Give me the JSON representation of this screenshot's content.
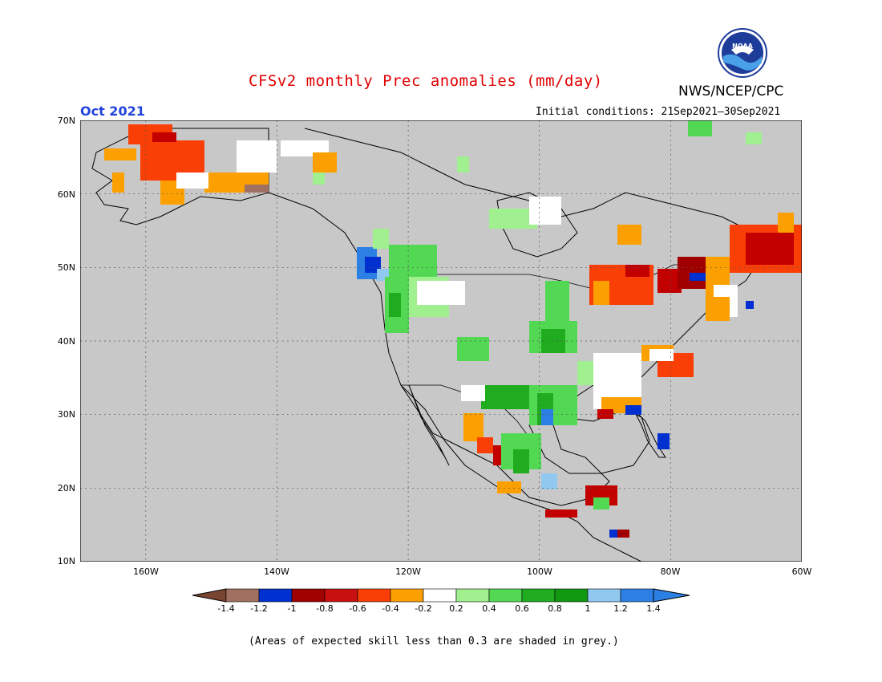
{
  "title": "CFSv2 monthly Prec anomalies (mm/day)",
  "agency": "NWS/NCEP/CPC",
  "logo_text": "NOAA",
  "month_label": "Oct 2021",
  "initial_conditions": "Initial conditions: 21Sep2021–30Sep2021",
  "footnote": "(Areas of expected skill less than 0.3 are shaded in grey.)",
  "map": {
    "lon_range": [
      -170,
      -60
    ],
    "lat_range": [
      10,
      70
    ],
    "lat_labels": [
      "70N",
      "60N",
      "50N",
      "40N",
      "30N",
      "20N",
      "10N"
    ],
    "lon_labels": [
      "160W",
      "140W",
      "120W",
      "100W",
      "80W",
      "60W"
    ],
    "background_color": "#c8c8c8",
    "regions": [
      {
        "name": "Alaska",
        "anomaly": "-0.6 to -0.4",
        "color": "#f93e06"
      },
      {
        "name": "Pacific Northwest coast",
        "anomaly": "1.2 to 1.4",
        "color": "#2c7fe3"
      },
      {
        "name": "Northern Rockies",
        "anomaly": "0.4 to 0.6",
        "color": "#53d853"
      },
      {
        "name": "Southern Plains",
        "anomaly": "0.6 to 0.8",
        "color": "#1fad1f"
      },
      {
        "name": "Eastern Canada / Maine",
        "anomaly": "-1 to -0.8",
        "color": "#c20000"
      },
      {
        "name": "Great Lakes",
        "anomaly": "-0.6 to -0.4",
        "color": "#f93e06"
      },
      {
        "name": "Carolinas",
        "anomaly": "-0.6 to -0.4",
        "color": "#f93e06"
      },
      {
        "name": "Southeast Gulf coast",
        "anomaly": "-0.4 to -0.2",
        "color": "#fba000"
      },
      {
        "name": "Central America",
        "anomaly": "-1 to -0.8",
        "color": "#c20000"
      }
    ]
  },
  "colorbar": {
    "labels": [
      "-1.4",
      "-1.2",
      "-1",
      "-0.8",
      "-0.6",
      "-0.4",
      "-0.2",
      "0.2",
      "0.4",
      "0.6",
      "0.8",
      "1",
      "1.2",
      "1.4"
    ],
    "colors": [
      "#7a4530",
      "#a07060",
      "#0030d0",
      "#a00000",
      "#c81010",
      "#f93e06",
      "#fba000",
      "#ffffff",
      "#a0f090",
      "#53d853",
      "#1fad1f",
      "#109810",
      "#90c8f0",
      "#2c7fe3",
      "#2c7fe3"
    ]
  }
}
